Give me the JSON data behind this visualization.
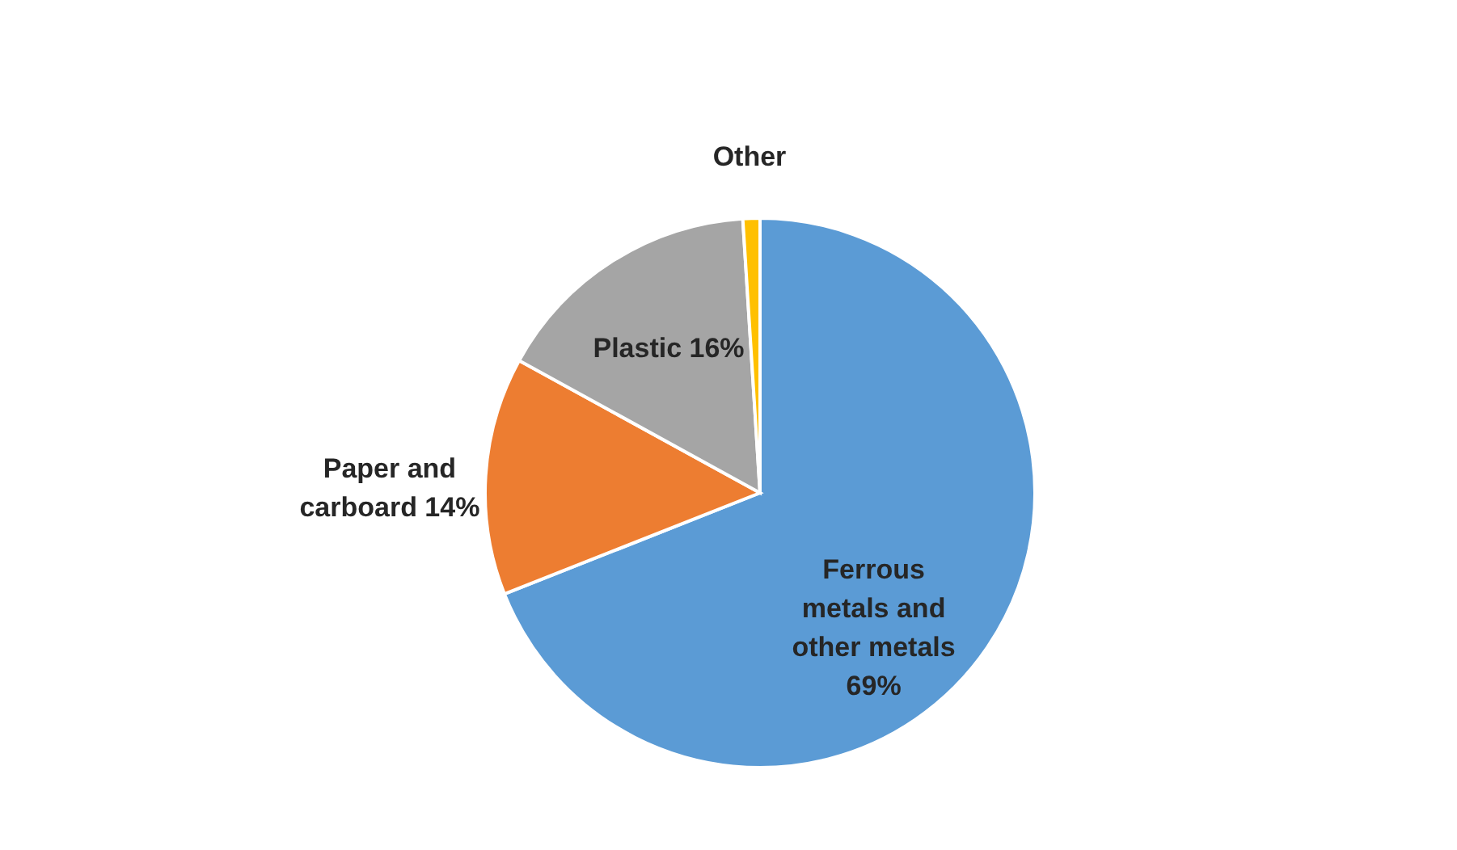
{
  "chart_data": {
    "type": "pie",
    "categories": [
      "Ferrous metals and other metals",
      "Paper and carboard",
      "Plastic",
      "Other"
    ],
    "values": [
      69,
      14,
      16,
      1
    ],
    "value_labels": [
      "69%",
      "14%",
      "16%",
      null
    ],
    "colors": [
      "#5b9bd5",
      "#ed7d31",
      "#a5a5a5",
      "#ffc000"
    ]
  }
}
